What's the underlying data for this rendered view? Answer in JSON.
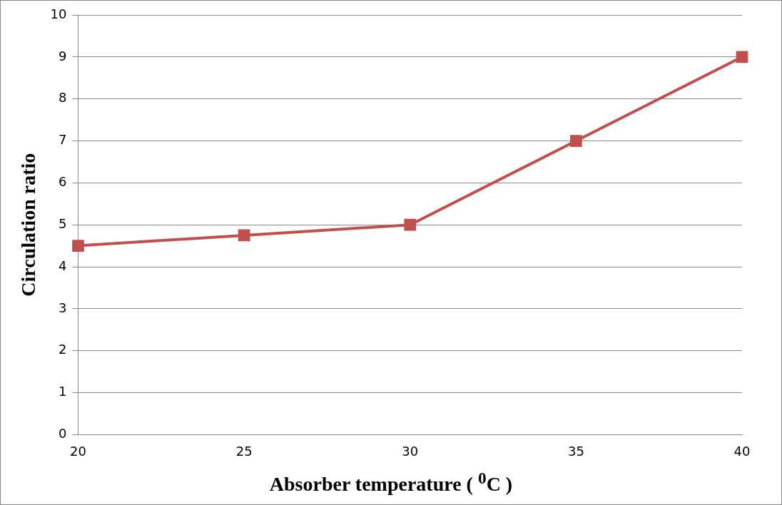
{
  "chart_data": {
    "type": "line",
    "xlabel": "Absorber temperature ( $^{0}$C )",
    "ylabel": "Circulation ratio",
    "categories": [
      "20",
      "25",
      "30",
      "35",
      "40"
    ],
    "series": [
      {
        "color": "#c0504d",
        "values": [
          4.5,
          4.75,
          5,
          7,
          9
        ]
      }
    ],
    "ylim": [
      0,
      10
    ],
    "yticks": [
      0,
      1,
      2,
      3,
      4,
      5,
      6,
      7,
      8,
      9,
      10
    ],
    "grid": "y",
    "marker": "square",
    "line_style": "solid"
  }
}
